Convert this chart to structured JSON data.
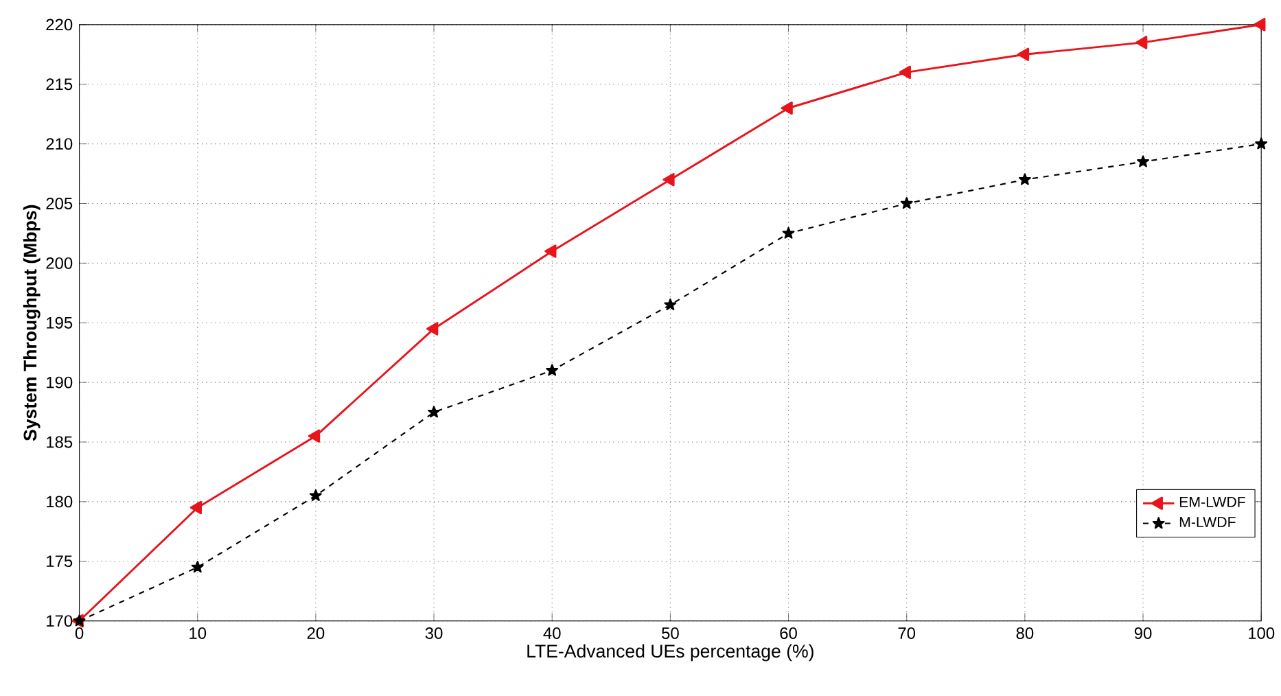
{
  "chart_data": {
    "type": "line",
    "xlabel": "LTE-Advanced UEs percentage (%)",
    "ylabel": "System Throughput (Mbps)",
    "x": [
      0,
      10,
      20,
      30,
      40,
      50,
      60,
      70,
      80,
      90,
      100
    ],
    "series": [
      {
        "name": "EM-LWDF",
        "color": "#e8141b",
        "values": [
          170,
          179.5,
          185.5,
          194.5,
          201,
          207,
          213,
          216,
          217.5,
          218.5,
          220
        ],
        "marker": "triangle",
        "line_style": "solid"
      },
      {
        "name": "M-LWDF",
        "color": "#000000",
        "values": [
          170,
          174.5,
          180.5,
          187.5,
          191,
          196.5,
          202.5,
          205,
          207,
          208.5,
          210
        ],
        "marker": "star",
        "line_style": "dashed"
      }
    ],
    "xlim": [
      0,
      100
    ],
    "xticks": [
      0,
      10,
      20,
      30,
      40,
      50,
      60,
      70,
      80,
      90,
      100
    ],
    "ylim": [
      170,
      220
    ],
    "yticks": [
      170,
      175,
      180,
      185,
      190,
      195,
      200,
      205,
      210,
      215,
      220
    ],
    "grid": true,
    "legend": "bottom right"
  }
}
